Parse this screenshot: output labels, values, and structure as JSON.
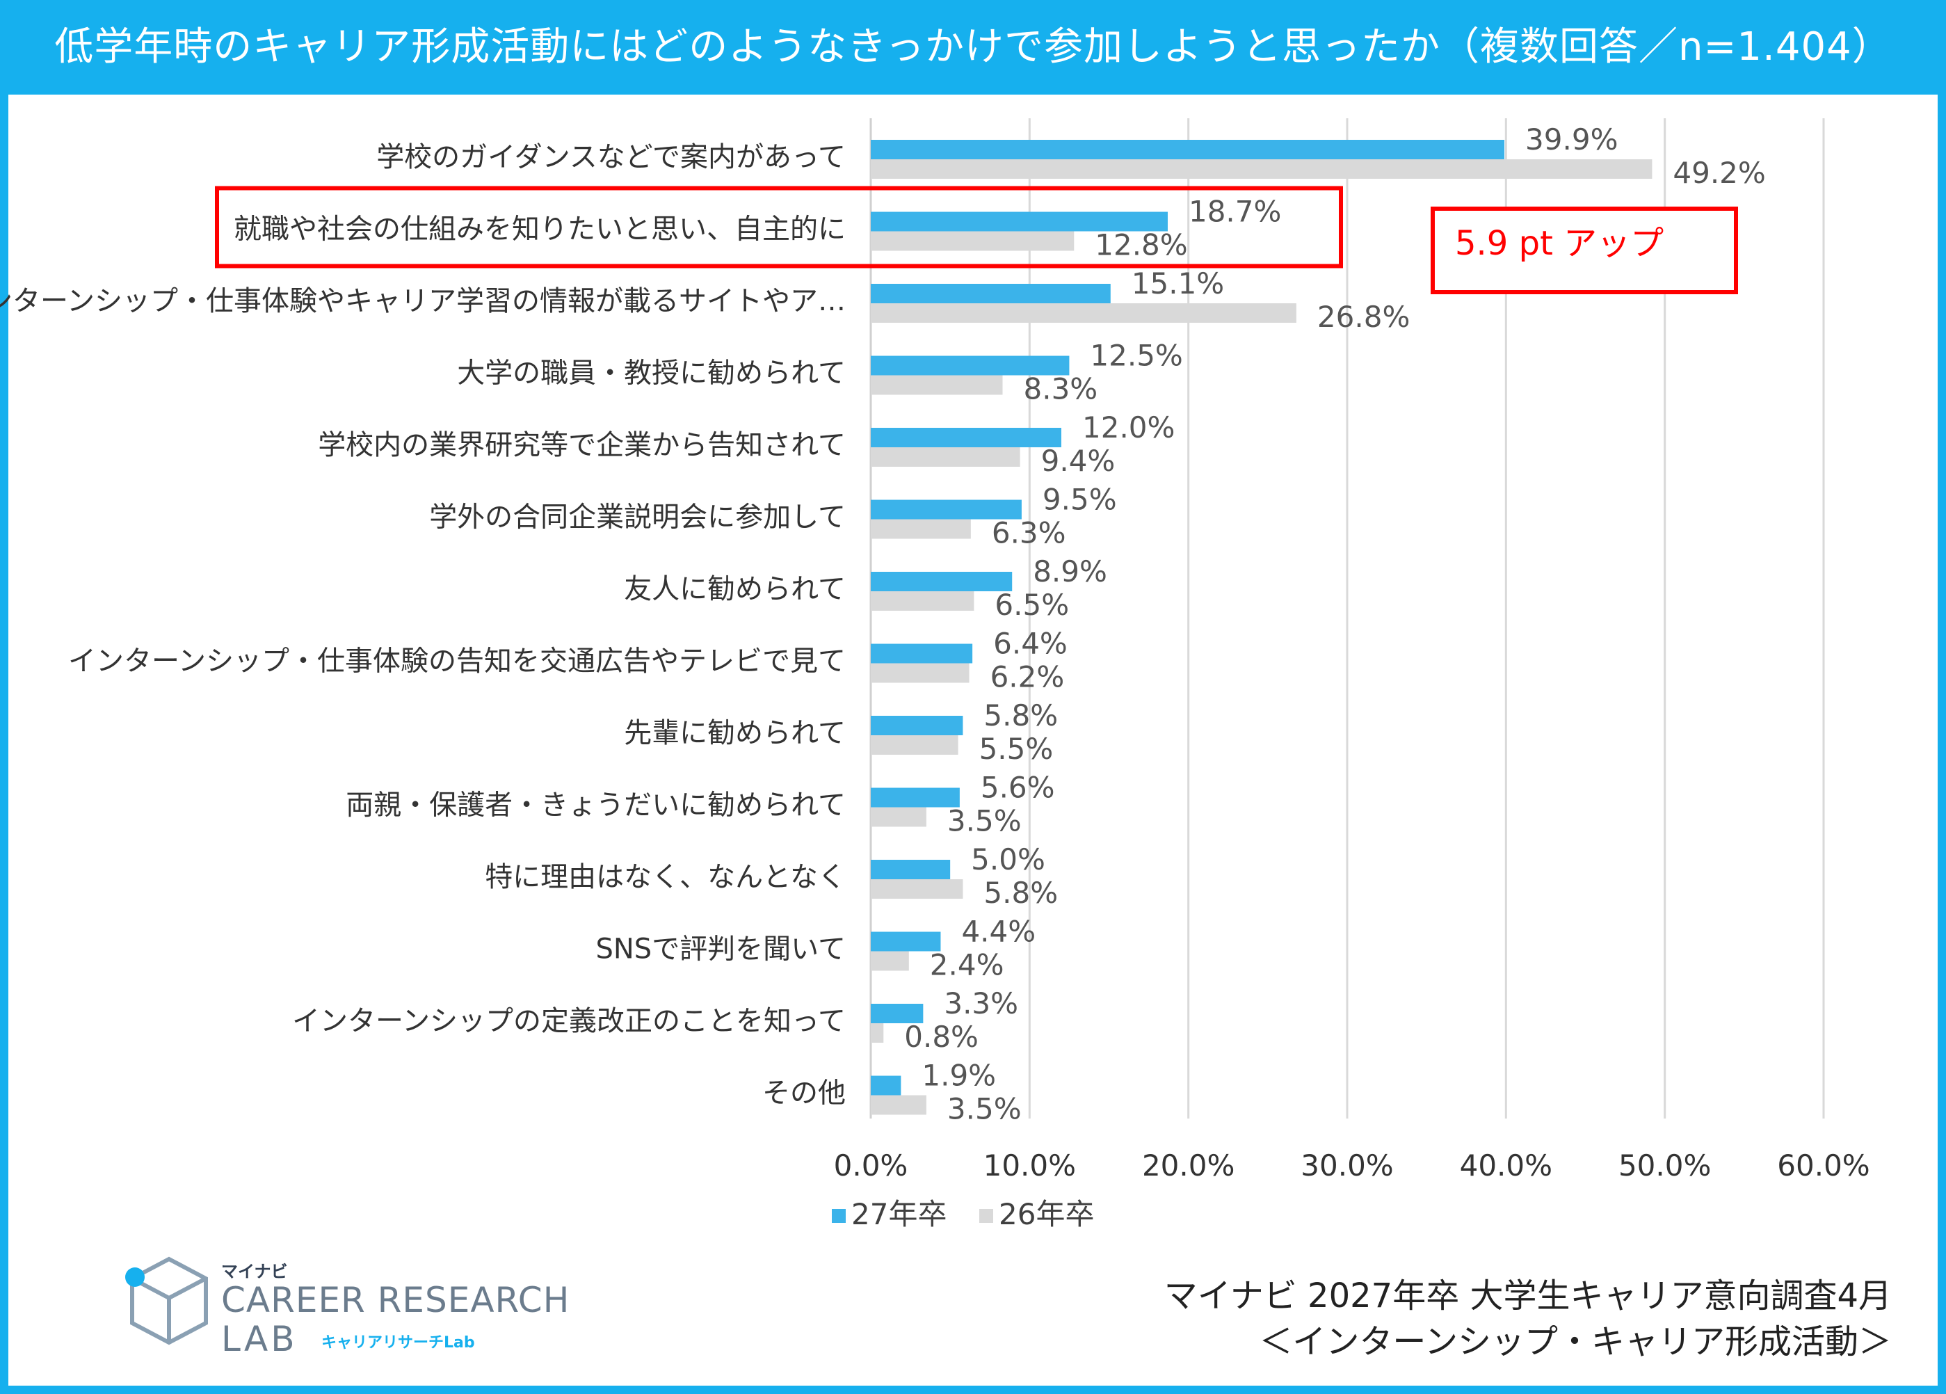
{
  "title": "低学年時のキャリア形成活動にはどのようなきっかけで参加しようと思ったか（複数回答／n=1.404）",
  "annotation": "5.9 pt アップ",
  "logo": {
    "small": "マイナビ",
    "main": "CAREER RESEARCH",
    "lab": "LAB",
    "sub": "キャリアリサーチLab"
  },
  "source": {
    "line1": "マイナビ 2027年卒 大学生キャリア意向調査4月",
    "line2": "＜インターンシップ・キャリア形成活動＞"
  },
  "colors": {
    "frame": "#16b0ee",
    "series_27": "#3bb3ea",
    "series_26": "#d9d9d9",
    "highlight": "#ff0000"
  },
  "chart_data": {
    "type": "bar",
    "orientation": "horizontal",
    "categories": [
      "学校のガイダンスなどで案内があって",
      "就職や社会の仕組みを知りたいと思い、自主的に",
      "インターンシップ・仕事体験やキャリア学習の情報が載るサイトやア…",
      "大学の職員・教授に勧められて",
      "学校内の業界研究等で企業から告知されて",
      "学外の合同企業説明会に参加して",
      "友人に勧められて",
      "インターンシップ・仕事体験の告知を交通広告やテレビで見て",
      "先輩に勧められて",
      "両親・保護者・きょうだいに勧められて",
      "特に理由はなく、なんとなく",
      "SNSで評判を聞いて",
      "インターンシップの定義改正のことを知って",
      "その他"
    ],
    "series": [
      {
        "name": "27年卒",
        "values": [
          39.9,
          18.7,
          15.1,
          12.5,
          12.0,
          9.5,
          8.9,
          6.4,
          5.8,
          5.6,
          5.0,
          4.4,
          3.3,
          1.9
        ]
      },
      {
        "name": "26年卒",
        "values": [
          49.2,
          12.8,
          26.8,
          8.3,
          9.4,
          6.3,
          6.5,
          6.2,
          5.5,
          3.5,
          5.8,
          2.4,
          0.8,
          3.5
        ]
      }
    ],
    "xlim": [
      0,
      60
    ],
    "ticks": [
      0,
      10,
      20,
      30,
      40,
      50,
      60
    ],
    "tick_labels": [
      "0.0%",
      "10.0%",
      "20.0%",
      "30.0%",
      "40.0%",
      "50.0%",
      "60.0%"
    ],
    "value_suffix": "%",
    "grid": true,
    "legend": "bottom",
    "highlighted_category_index": 1
  }
}
